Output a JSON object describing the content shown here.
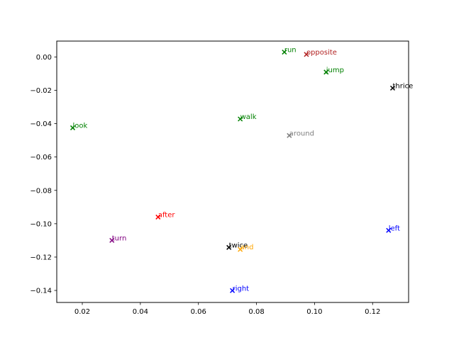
{
  "chart_data": {
    "type": "scatter",
    "title": "",
    "xlabel": "",
    "ylabel": "",
    "xlim": [
      0.0112,
      0.1324
    ],
    "ylim": [
      -0.1472,
      0.0095
    ],
    "grid": false,
    "marker": "x",
    "x_ticks": [
      {
        "value": 0.02,
        "label": "0.02"
      },
      {
        "value": 0.04,
        "label": "0.04"
      },
      {
        "value": 0.06,
        "label": "0.06"
      },
      {
        "value": 0.08,
        "label": "0.08"
      },
      {
        "value": 0.1,
        "label": "0.10"
      },
      {
        "value": 0.12,
        "label": "0.12"
      }
    ],
    "y_ticks": [
      {
        "value": 0.0,
        "label": "0.00"
      },
      {
        "value": -0.02,
        "label": "−0.02"
      },
      {
        "value": -0.04,
        "label": "−0.04"
      },
      {
        "value": -0.06,
        "label": "−0.06"
      },
      {
        "value": -0.08,
        "label": "−0.08"
      },
      {
        "value": -0.1,
        "label": "−0.10"
      },
      {
        "value": -0.12,
        "label": "−0.12"
      },
      {
        "value": -0.14,
        "label": "−0.14"
      }
    ],
    "points": [
      {
        "label": "run",
        "x": 0.0896,
        "y": 0.0029,
        "color": "#008000"
      },
      {
        "label": "opposite",
        "x": 0.0972,
        "y": 0.0015,
        "color": "#b22222"
      },
      {
        "label": "jump",
        "x": 0.104,
        "y": -0.0091,
        "color": "#008000"
      },
      {
        "label": "thrice",
        "x": 0.1269,
        "y": -0.0187,
        "color": "#000000"
      },
      {
        "label": "walk",
        "x": 0.0744,
        "y": -0.0372,
        "color": "#008000"
      },
      {
        "label": "look",
        "x": 0.0167,
        "y": -0.0425,
        "color": "#008000"
      },
      {
        "label": "around",
        "x": 0.0913,
        "y": -0.0471,
        "color": "#808080"
      },
      {
        "label": "after",
        "x": 0.0461,
        "y": -0.096,
        "color": "#ff0000"
      },
      {
        "label": "left",
        "x": 0.1255,
        "y": -0.104,
        "color": "#0000ff"
      },
      {
        "label": "turn",
        "x": 0.0302,
        "y": -0.11,
        "color": "#800080"
      },
      {
        "label": "twice",
        "x": 0.0705,
        "y": -0.1142,
        "color": "#000000"
      },
      {
        "label": "and",
        "x": 0.0744,
        "y": -0.1154,
        "color": "#ffa500"
      },
      {
        "label": "right",
        "x": 0.0717,
        "y": -0.1401,
        "color": "#0000ff"
      }
    ]
  }
}
